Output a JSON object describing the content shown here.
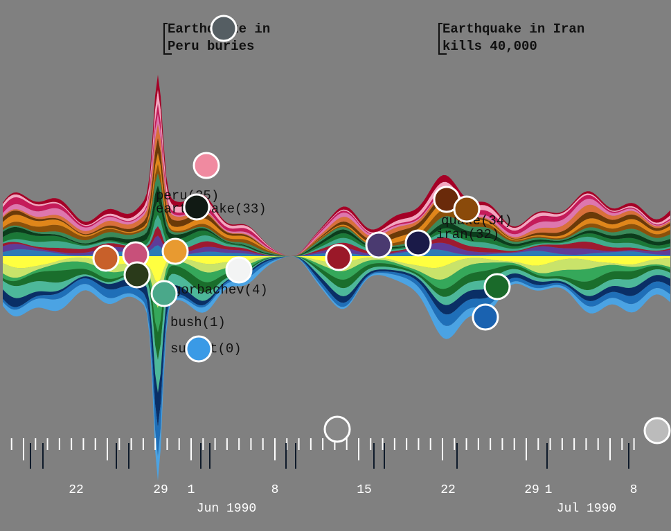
{
  "annotations": [
    {
      "lines": [
        "Earthquake in",
        "Peru buries"
      ]
    },
    {
      "lines": [
        "Earthquake in Iran",
        "kills 40,000"
      ]
    }
  ],
  "stream_labels": [
    "peru(35)",
    "earthquake(33)",
    "quake(34)",
    "iran(32)",
    "gorbachev(4)",
    "bush(1)",
    "summit(0)"
  ],
  "day_labels": [
    "22",
    "29",
    "1",
    "8",
    "15",
    "22",
    "29",
    "1",
    "8"
  ],
  "month_labels": [
    "Jun 1990",
    "Jul 1990"
  ]
}
